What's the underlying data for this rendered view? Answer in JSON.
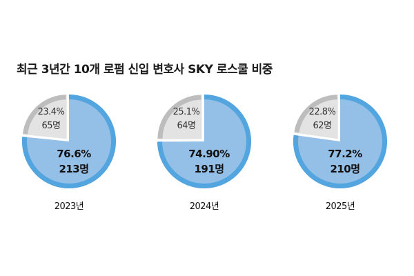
{
  "chart_data": [
    {
      "type": "pie",
      "title": "최근 3년간 10개 로펌 신입 변호사 SKY 로스쿨 비중",
      "xlabel": "2023년",
      "slices": [
        {
          "label": "76.6%",
          "count": "213명",
          "value": 76.6,
          "color": "#94bfe7",
          "ring": "#53a5df"
        },
        {
          "label": "23.4%",
          "count": "65명",
          "value": 23.4,
          "color": "#e3e3e3",
          "ring": "#bdbdbd"
        }
      ]
    },
    {
      "type": "pie",
      "xlabel": "2024년",
      "slices": [
        {
          "label": "74.90%",
          "count": "191명",
          "value": 74.9,
          "color": "#94bfe7",
          "ring": "#53a5df"
        },
        {
          "label": "25.1%",
          "count": "64명",
          "value": 25.1,
          "color": "#e3e3e3",
          "ring": "#bdbdbd"
        }
      ]
    },
    {
      "type": "pie",
      "xlabel": "2025년",
      "slices": [
        {
          "label": "77.2%",
          "count": "210명",
          "value": 77.2,
          "color": "#94bfe7",
          "ring": "#53a5df"
        },
        {
          "label": "22.8%",
          "count": "62명",
          "value": 22.8,
          "color": "#e3e3e3",
          "ring": "#bdbdbd"
        }
      ]
    }
  ]
}
